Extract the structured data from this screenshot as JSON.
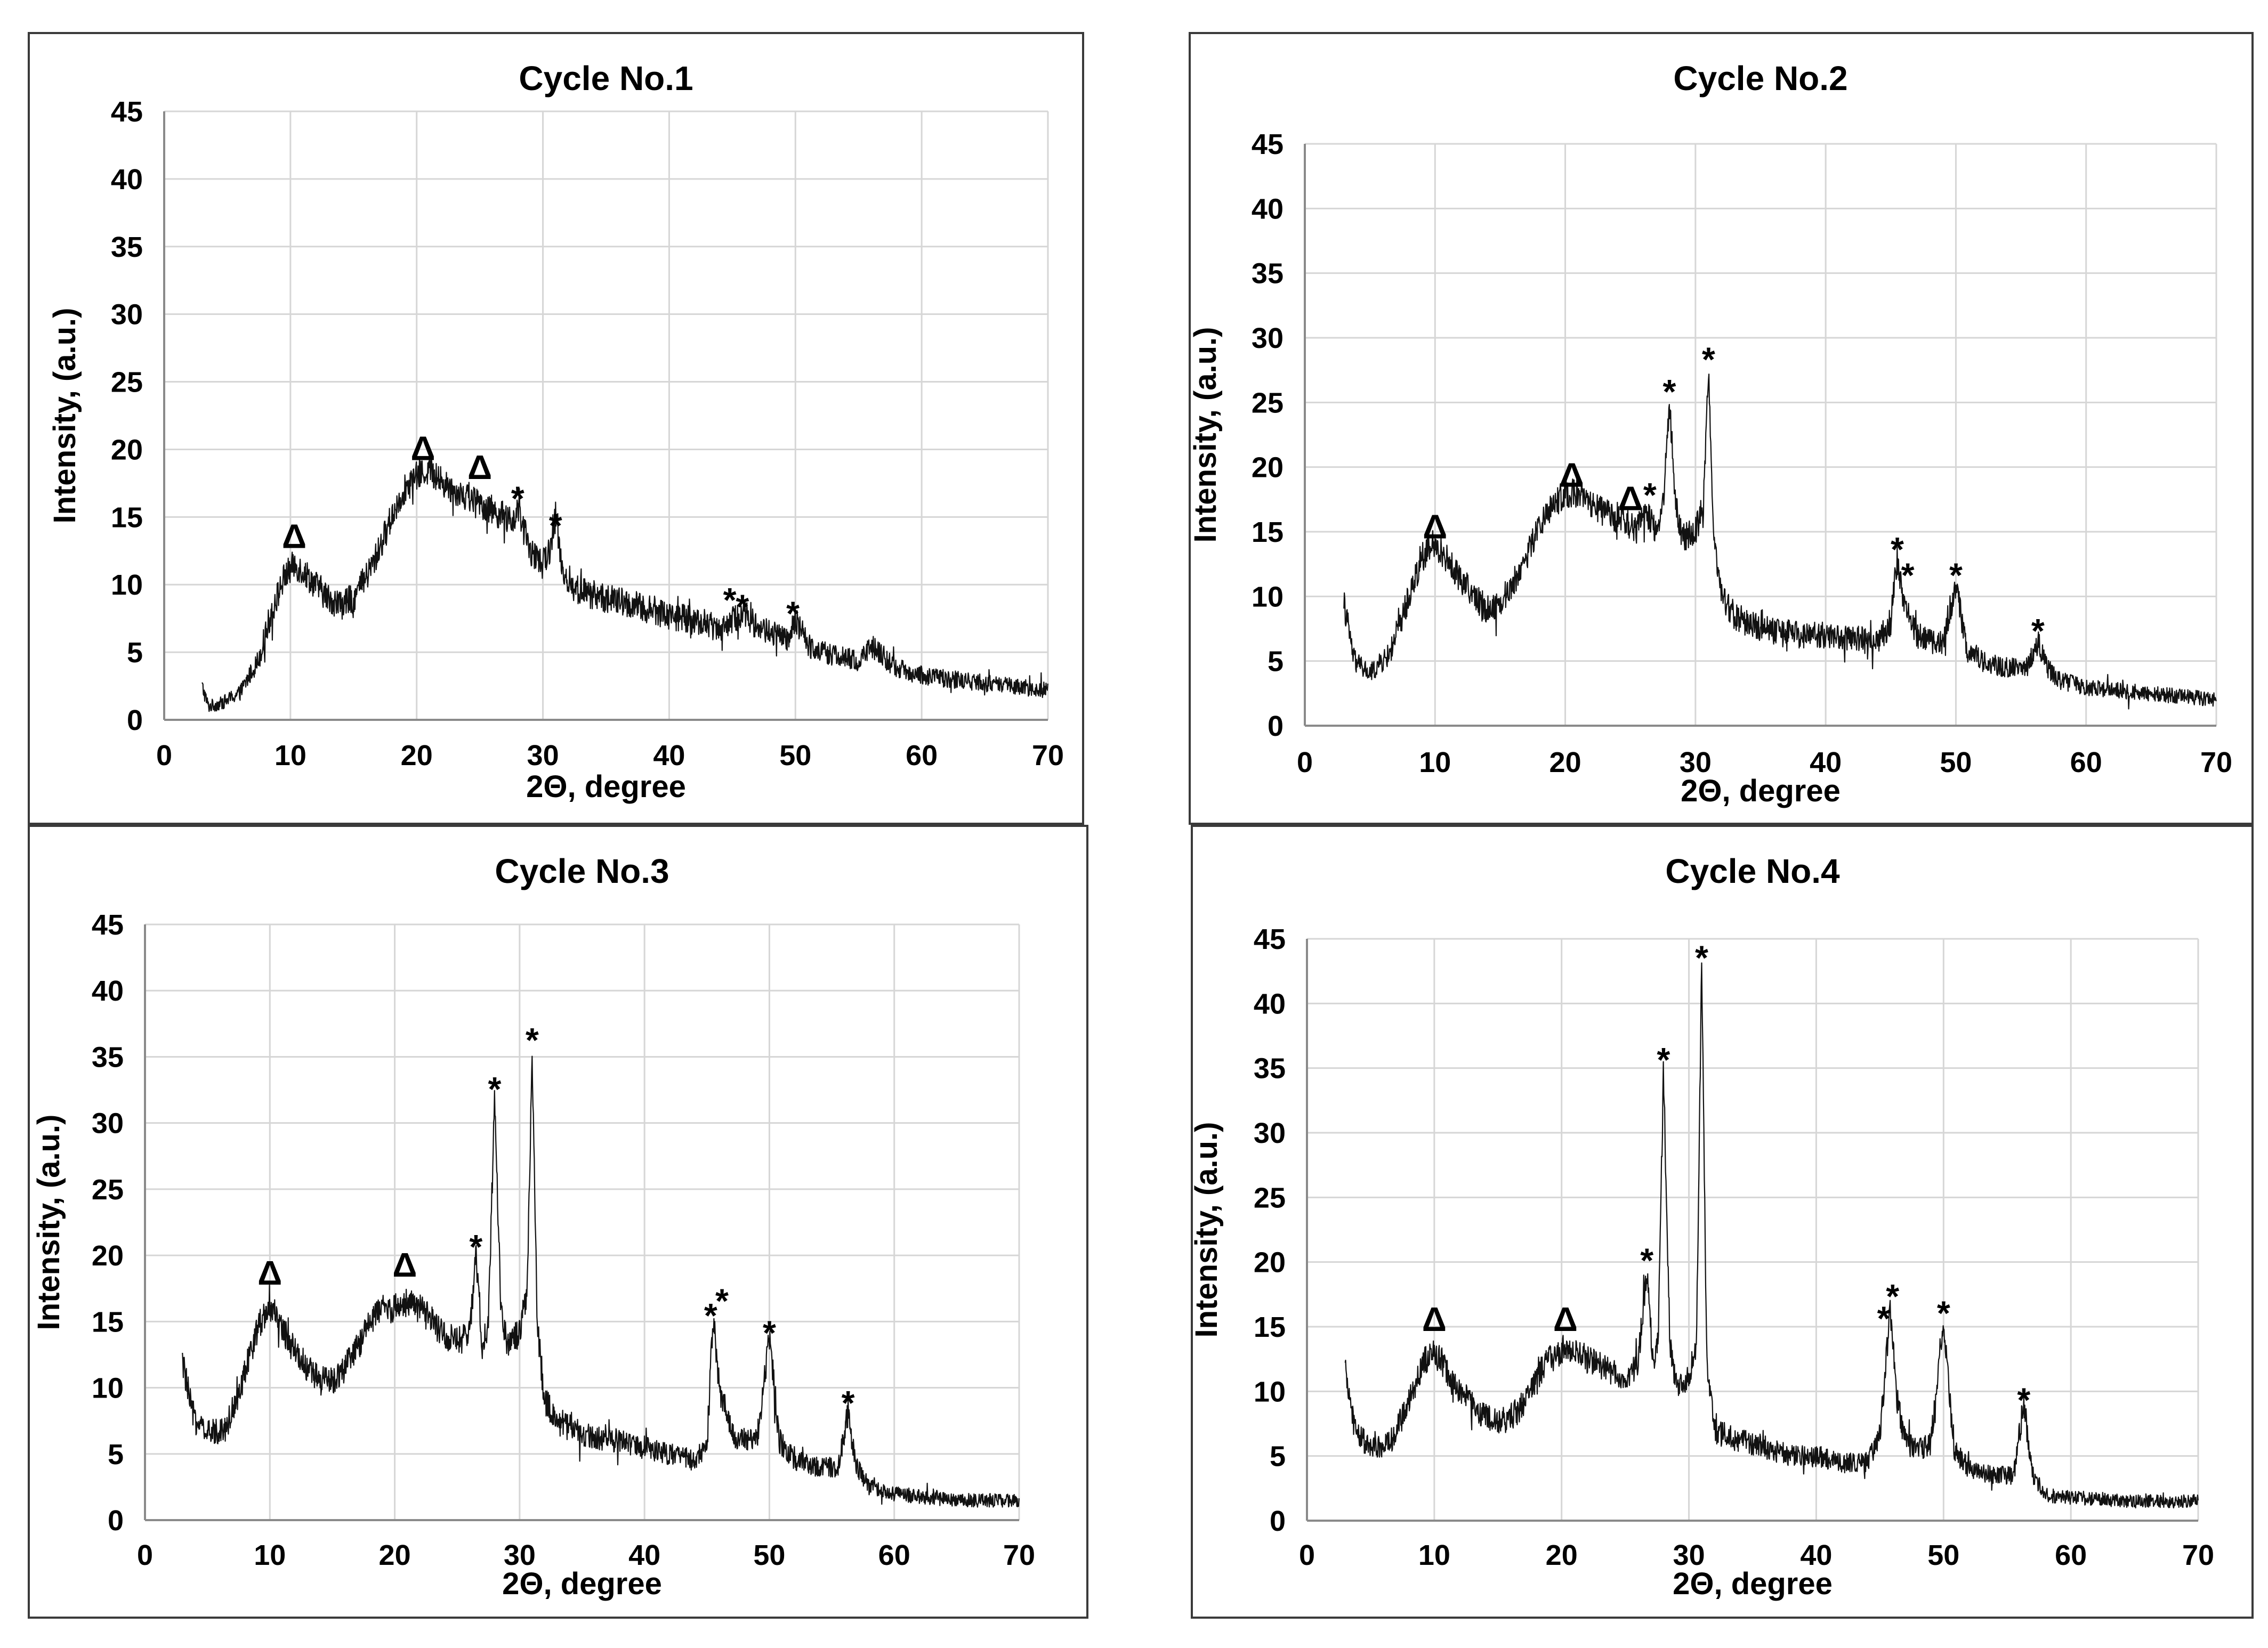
{
  "chart_data": [
    {
      "type": "line",
      "title": "Cycle No.1",
      "xlabel": "2Θ, degree",
      "ylabel": "Intensity, (a.u.)",
      "xlim": [
        0,
        70
      ],
      "ylim": [
        0,
        45
      ],
      "xticks": [
        0,
        10,
        20,
        30,
        40,
        50,
        60,
        70
      ],
      "yticks": [
        0,
        5,
        10,
        15,
        20,
        25,
        30,
        35,
        40,
        45
      ],
      "grid": true,
      "series": [
        {
          "name": "Cycle No.1",
          "x": [
            3,
            3.5,
            4.5,
            6,
            7.5,
            8.5,
            9.5,
            10.3,
            11,
            12,
            13,
            14,
            15,
            16,
            17,
            18,
            19,
            20,
            21,
            22,
            23,
            24,
            25,
            26,
            27,
            27.5,
            28,
            28.5,
            29,
            30,
            30.5,
            31,
            31.5,
            32,
            33,
            35,
            37,
            40,
            42,
            44,
            45,
            46,
            46.8,
            48,
            49.5,
            50,
            51,
            53,
            55,
            56,
            58,
            60,
            65,
            70
          ],
          "y": [
            2.5,
            1.0,
            1.2,
            2.0,
            4.5,
            8.0,
            10.5,
            11.5,
            11.0,
            10.0,
            9.0,
            8.5,
            9.0,
            10.5,
            12.5,
            15.0,
            17.0,
            18.0,
            18.5,
            17.5,
            17.0,
            16.5,
            16.0,
            15.5,
            15.0,
            14.5,
            15.5,
            14.0,
            12.5,
            11.5,
            12.5,
            15.0,
            11.5,
            10.0,
            9.5,
            9.0,
            8.5,
            7.8,
            7.3,
            6.8,
            7.3,
            8.0,
            7.0,
            6.5,
            5.8,
            7.5,
            5.5,
            4.8,
            4.3,
            5.5,
            3.8,
            3.3,
            2.7,
            2.2
          ]
        }
      ],
      "annotations": [
        {
          "symbol": "Δ",
          "x": 10.3,
          "y": 13.5
        },
        {
          "symbol": "Δ",
          "x": 20.5,
          "y": 20.0
        },
        {
          "symbol": "Δ",
          "x": 25.0,
          "y": 18.6
        },
        {
          "symbol": "*",
          "x": 28.0,
          "y": 17.0
        },
        {
          "symbol": "*",
          "x": 31.0,
          "y": 15.0
        },
        {
          "symbol": "*",
          "x": 44.8,
          "y": 9.5
        },
        {
          "symbol": "*",
          "x": 45.8,
          "y": 9.0
        },
        {
          "symbol": "*",
          "x": 49.8,
          "y": 8.5
        }
      ]
    },
    {
      "type": "line",
      "title": "Cycle No.2",
      "xlabel": "2Θ, degree",
      "ylabel": "Intensity, (a.u.)",
      "xlim": [
        0,
        70
      ],
      "ylim": [
        0,
        45
      ],
      "xticks": [
        0,
        10,
        20,
        30,
        40,
        50,
        60,
        70
      ],
      "yticks": [
        0,
        5,
        10,
        15,
        20,
        25,
        30,
        35,
        40,
        45
      ],
      "grid": true,
      "series": [
        {
          "name": "Cycle No.2",
          "x": [
            3,
            3.8,
            5,
            6.5,
            8,
            9,
            9.8,
            10.5,
            11.5,
            13,
            14,
            15,
            16,
            17,
            18,
            19,
            20,
            21,
            22,
            23,
            24,
            25,
            25.5,
            26,
            26.6,
            27,
            27.5,
            28,
            28.5,
            29,
            30,
            30.6,
            31,
            31.4,
            32,
            33,
            35,
            38,
            40,
            42,
            44,
            45,
            45.5,
            46,
            47,
            48,
            49,
            50,
            50.8,
            52,
            54,
            55.5,
            56.3,
            57,
            58,
            60,
            65,
            70
          ],
          "y": [
            9.5,
            5.0,
            4.0,
            5.5,
            10.0,
            13.0,
            13.8,
            13.5,
            12.0,
            10.0,
            9.0,
            9.5,
            11.0,
            13.0,
            15.5,
            17.0,
            18.0,
            18.0,
            17.0,
            16.5,
            16.0,
            15.5,
            15.0,
            16.5,
            16.0,
            15.0,
            17.0,
            25.0,
            17.0,
            14.5,
            15.0,
            17.0,
            27.5,
            15.0,
            10.0,
            8.5,
            7.5,
            7.0,
            7.0,
            6.8,
            6.5,
            8.0,
            13.0,
            9.5,
            7.0,
            6.5,
            6.5,
            11.0,
            6.0,
            5.0,
            4.5,
            4.5,
            6.5,
            4.5,
            3.5,
            3.0,
            2.5,
            2.0
          ]
        }
      ],
      "annotations": [
        {
          "symbol": "Δ",
          "x": 10.0,
          "y": 15.3
        },
        {
          "symbol": "Δ",
          "x": 20.5,
          "y": 19.3
        },
        {
          "symbol": "Δ",
          "x": 25.0,
          "y": 17.5
        },
        {
          "symbol": "*",
          "x": 26.5,
          "y": 18.5
        },
        {
          "symbol": "*",
          "x": 28.0,
          "y": 26.5
        },
        {
          "symbol": "*",
          "x": 31.0,
          "y": 29.0
        },
        {
          "symbol": "*",
          "x": 45.5,
          "y": 14.3
        },
        {
          "symbol": "*",
          "x": 46.3,
          "y": 12.3
        },
        {
          "symbol": "*",
          "x": 50.0,
          "y": 12.3
        },
        {
          "symbol": "*",
          "x": 56.3,
          "y": 8.0
        }
      ]
    },
    {
      "type": "line",
      "title": "Cycle No.3",
      "xlabel": "2Θ, degree",
      "ylabel": "Intensity, (a.u.)",
      "xlim": [
        0,
        70
      ],
      "ylim": [
        0,
        45
      ],
      "xticks": [
        0,
        10,
        20,
        30,
        40,
        50,
        60,
        70
      ],
      "yticks": [
        0,
        5,
        10,
        15,
        20,
        25,
        30,
        35,
        40,
        45
      ],
      "grid": true,
      "series": [
        {
          "name": "Cycle No.3",
          "x": [
            3,
            3.8,
            5,
            6.5,
            8,
            9,
            9.8,
            10.5,
            11.5,
            13,
            14,
            15,
            16,
            17,
            18,
            19,
            20,
            21,
            22,
            23,
            24,
            25,
            26,
            26.5,
            27,
            27.5,
            28,
            28.5,
            29,
            30,
            30.6,
            31,
            31.4,
            32,
            33,
            35,
            38,
            40,
            42,
            44,
            45,
            45.5,
            46,
            47,
            48,
            49,
            50,
            50.8,
            52,
            54,
            55.5,
            56.3,
            57,
            58,
            60,
            65,
            70
          ],
          "y": [
            12.0,
            8.0,
            6.5,
            7.0,
            11.0,
            14.5,
            16.0,
            15.5,
            13.5,
            11.5,
            10.5,
            10.5,
            11.5,
            13.0,
            15.0,
            16.0,
            16.0,
            16.5,
            16.0,
            15.0,
            14.0,
            13.5,
            14.0,
            20.0,
            13.0,
            15.0,
            32.0,
            16.0,
            13.5,
            14.0,
            17.0,
            35.5,
            15.0,
            9.0,
            7.5,
            6.5,
            6.0,
            5.5,
            5.0,
            4.5,
            5.5,
            15.5,
            10.0,
            6.5,
            6.0,
            6.0,
            14.0,
            6.0,
            4.5,
            4.0,
            4.0,
            8.0,
            4.0,
            2.5,
            2.0,
            1.5,
            1.5
          ]
        }
      ],
      "annotations": [
        {
          "symbol": "Δ",
          "x": 10.0,
          "y": 18.6
        },
        {
          "symbol": "Δ",
          "x": 20.8,
          "y": 19.2
        },
        {
          "symbol": "*",
          "x": 26.5,
          "y": 21.3
        },
        {
          "symbol": "*",
          "x": 28.0,
          "y": 33.2
        },
        {
          "symbol": "*",
          "x": 31.0,
          "y": 36.9
        },
        {
          "symbol": "*",
          "x": 45.3,
          "y": 16.1
        },
        {
          "symbol": "*",
          "x": 46.2,
          "y": 17.2
        },
        {
          "symbol": "*",
          "x": 50.0,
          "y": 14.8
        },
        {
          "symbol": "*",
          "x": 56.3,
          "y": 9.5
        }
      ]
    },
    {
      "type": "line",
      "title": "Cycle No.4",
      "xlabel": "2Θ, degree",
      "ylabel": "Intensity, (a.u.)",
      "xlim": [
        0,
        70
      ],
      "ylim": [
        0,
        45
      ],
      "xticks": [
        0,
        10,
        20,
        30,
        40,
        50,
        60,
        70
      ],
      "yticks": [
        0,
        5,
        10,
        15,
        20,
        25,
        30,
        35,
        40,
        45
      ],
      "grid": true,
      "series": [
        {
          "name": "Cycle No.4",
          "x": [
            3,
            3.8,
            5,
            6.5,
            8,
            9,
            9.8,
            10.5,
            11.5,
            13,
            14,
            15,
            16,
            17,
            18,
            19,
            20,
            21,
            22,
            23,
            24,
            25,
            26,
            26.7,
            27.2,
            27.6,
            28,
            28.5,
            29,
            30,
            30.6,
            31,
            31.4,
            32,
            33,
            35,
            38,
            40,
            42,
            44,
            45,
            45.8,
            46.4,
            47,
            48,
            49,
            50,
            50.8,
            52,
            54,
            55.5,
            56.3,
            57,
            58,
            60,
            65,
            70
          ],
          "y": [
            11.5,
            7.0,
            5.5,
            6.0,
            9.0,
            12.0,
            13.0,
            12.5,
            10.5,
            9.0,
            8.0,
            7.5,
            8.0,
            9.0,
            11.0,
            12.5,
            13.0,
            13.0,
            12.5,
            12.0,
            11.5,
            11.0,
            12.0,
            19.5,
            12.0,
            14.0,
            35.0,
            14.0,
            10.5,
            11.0,
            14.0,
            43.0,
            12.0,
            7.0,
            6.5,
            6.0,
            5.0,
            5.0,
            4.5,
            4.5,
            6.5,
            16.0,
            9.0,
            6.0,
            5.5,
            6.0,
            15.5,
            5.5,
            4.0,
            3.5,
            3.5,
            9.0,
            3.5,
            2.0,
            1.8,
            1.5,
            1.5
          ]
        }
      ],
      "annotations": [
        {
          "symbol": "Δ",
          "x": 10.0,
          "y": 15.5
        },
        {
          "symbol": "Δ",
          "x": 20.3,
          "y": 15.5
        },
        {
          "symbol": "*",
          "x": 26.7,
          "y": 20.8
        },
        {
          "symbol": "*",
          "x": 28.0,
          "y": 36.3
        },
        {
          "symbol": "*",
          "x": 31.0,
          "y": 44.2
        },
        {
          "symbol": "*",
          "x": 45.3,
          "y": 16.3
        },
        {
          "symbol": "*",
          "x": 46.0,
          "y": 18.0
        },
        {
          "symbol": "*",
          "x": 50.0,
          "y": 16.7
        },
        {
          "symbol": "*",
          "x": 56.3,
          "y": 10.0
        }
      ]
    }
  ]
}
